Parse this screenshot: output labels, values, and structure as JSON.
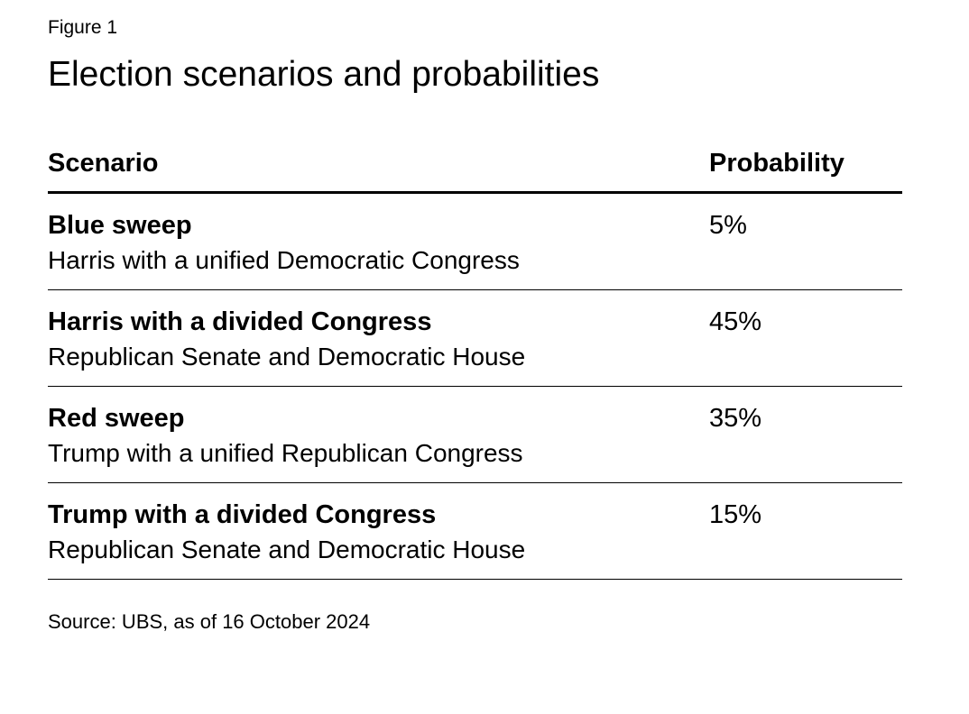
{
  "figure": {
    "label": "Figure 1",
    "title": "Election scenarios and probabilities",
    "source": "Source: UBS, as of 16 October 2024"
  },
  "table": {
    "headers": {
      "scenario": "Scenario",
      "probability": "Probability"
    },
    "rows": [
      {
        "name": "Blue sweep",
        "description": "Harris with a unified Democratic Congress",
        "probability": "5%"
      },
      {
        "name": "Harris with a divided Congress",
        "description": "Republican Senate and Democratic House",
        "probability": "45%"
      },
      {
        "name": "Red sweep",
        "description": "Trump with a unified Republican Congress",
        "probability": "35%"
      },
      {
        "name": "Trump with a divided Congress",
        "description": "Republican Senate and Democratic House",
        "probability": "15%"
      }
    ]
  }
}
